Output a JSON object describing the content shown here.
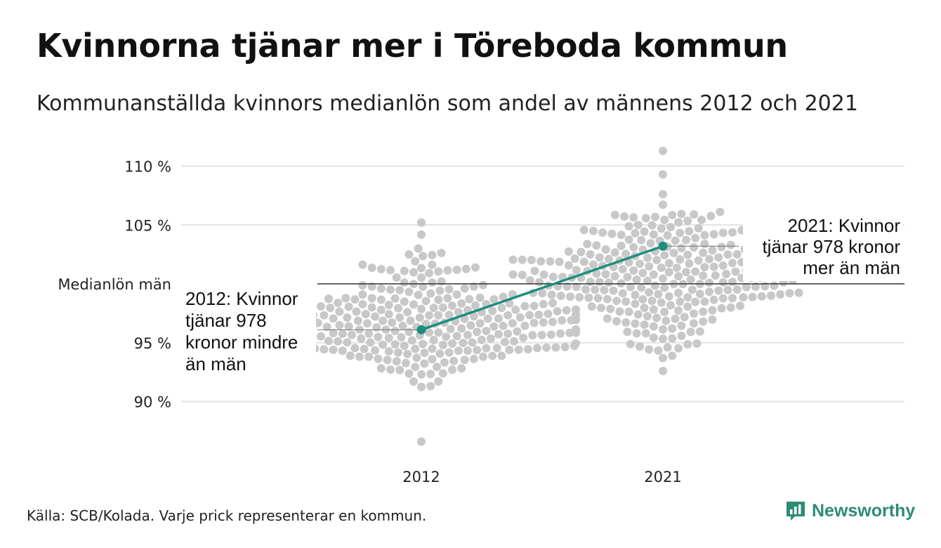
{
  "title": "Kvinnorna tjänar mer i Töreboda kommun",
  "subtitle": "Kommunanställda kvinnors medianlön som andel av männens 2012 och 2021",
  "source": "Källa: SCB/Kolada. Varje prick representerar en kommun.",
  "brand": "Newsworthy",
  "colors": {
    "dots": "#c8c8c8",
    "highlight": "#1b8f7d",
    "grid": "#e2e2e2",
    "reference": "#333333",
    "brand": "#2e8b77"
  },
  "chart_data": {
    "type": "scatter",
    "subtype": "beeswarm",
    "categories": [
      "2012",
      "2021"
    ],
    "y_ticks": [
      {
        "value": 110,
        "label": "110 %"
      },
      {
        "value": 105,
        "label": "105 %"
      },
      {
        "value": 95,
        "label": "95 %"
      },
      {
        "value": 90,
        "label": "90 %"
      }
    ],
    "ylim": [
      86,
      111.5
    ],
    "reference_line": {
      "value": 100,
      "label": "Medianlön män"
    },
    "grid": true,
    "highlight_series": [
      {
        "x": "2012",
        "y": 96.1
      },
      {
        "x": "2021",
        "y": 103.2
      }
    ],
    "annotations": [
      {
        "x": "2012",
        "y": 96.1,
        "lines": [
          "2012: Kvinnor",
          "tjänar 978",
          "kronor mindre",
          "än män"
        ]
      },
      {
        "x": "2021",
        "y": 103.2,
        "lines": [
          "2021: Kvinnor",
          "tjänar 978 kronor",
          "mer än män"
        ]
      }
    ],
    "distribution": [
      {
        "category": "2012",
        "min": 86.6,
        "max": 105.2,
        "mean": 96.6,
        "sd": 2.6,
        "count": 290
      },
      {
        "category": "2021",
        "min": 92.6,
        "max": 111.3,
        "mean": 101.0,
        "sd": 2.7,
        "count": 290
      }
    ]
  }
}
